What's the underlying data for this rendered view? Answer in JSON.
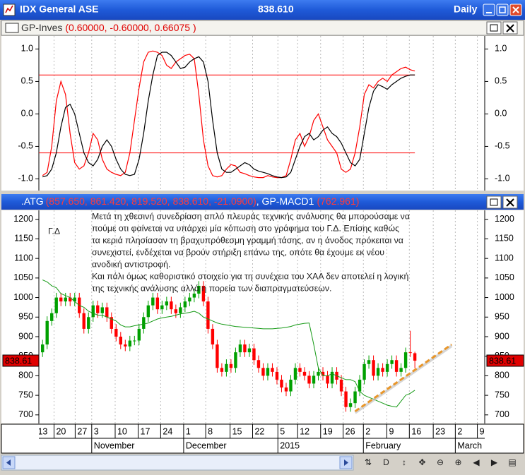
{
  "window": {
    "title": "IDX General ASE",
    "price": "838.610",
    "period": "Daily"
  },
  "chart_data": [
    {
      "type": "line",
      "name": "GP-Inves",
      "params": "(0.60000, -0.60000, 0.66075 )",
      "xlim": [
        -0.8,
        96.2
      ],
      "ylim": [
        -1.18,
        1.2
      ],
      "yticks": [
        {
          "value": 1,
          "label": "1.0"
        },
        0.5,
        {
          "value": 0,
          "label": "0.0"
        },
        -0.5,
        {
          "value": -1,
          "label": "-1.0"
        }
      ],
      "hlines": {
        "values": [
          0.6,
          -0.6
        ],
        "color": "#ff0000"
      },
      "series": [
        {
          "color": "#ff0000",
          "values": [
            -0.95,
            -0.9,
            -0.5,
            0.2,
            0.5,
            0.3,
            -0.3,
            -0.75,
            -0.85,
            -0.8,
            -0.6,
            -0.3,
            -0.4,
            -0.7,
            -0.85,
            -0.9,
            -0.93,
            -0.95,
            -0.9,
            -0.6,
            -0.1,
            0.4,
            0.8,
            0.95,
            0.97,
            0.95,
            0.9,
            0.75,
            0.7,
            0.8,
            0.85,
            0.9,
            0.92,
            0.85,
            0.3,
            -0.4,
            -0.8,
            -0.95,
            -0.97,
            -0.95,
            -0.85,
            -0.78,
            -0.8,
            -0.9,
            -0.92,
            -0.95,
            -0.97,
            -0.98,
            -0.98,
            -0.95,
            -0.97,
            -0.98,
            -0.98,
            -0.95,
            -0.7,
            -0.4,
            -0.3,
            -0.5,
            -0.35,
            -0.1,
            0.0,
            -0.2,
            -0.4,
            -0.5,
            -0.6,
            -0.85,
            -0.9,
            -0.85,
            -0.6,
            -0.2,
            0.3,
            0.45,
            0.4,
            0.5,
            0.55,
            0.5,
            0.6,
            0.65,
            0.7,
            0.72,
            0.68,
            0.66075
          ]
        },
        {
          "color": "#000000",
          "values": [
            -0.97,
            -0.95,
            -0.85,
            -0.6,
            -0.2,
            0.1,
            0.15,
            0.0,
            -0.3,
            -0.6,
            -0.75,
            -0.8,
            -0.7,
            -0.5,
            -0.4,
            -0.5,
            -0.7,
            -0.85,
            -0.93,
            -0.95,
            -0.93,
            -0.7,
            -0.3,
            0.2,
            0.6,
            0.9,
            0.95,
            0.95,
            0.9,
            0.8,
            0.7,
            0.72,
            0.8,
            0.85,
            0.88,
            0.8,
            0.5,
            -0.1,
            -0.6,
            -0.85,
            -0.9,
            -0.9,
            -0.85,
            -0.8,
            -0.75,
            -0.78,
            -0.85,
            -0.88,
            -0.9,
            -0.92,
            -0.95,
            -0.97,
            -0.98,
            -0.97,
            -0.9,
            -0.7,
            -0.5,
            -0.35,
            -0.3,
            -0.4,
            -0.35,
            -0.25,
            -0.2,
            -0.3,
            -0.35,
            -0.45,
            -0.6,
            -0.75,
            -0.8,
            -0.7,
            -0.3,
            0.1,
            0.35,
            0.45,
            0.42,
            0.38,
            0.45,
            0.5,
            0.55,
            0.58,
            0.6,
            0.6
          ]
        }
      ]
    },
    {
      "type": "candlestick",
      "name": ".ATG",
      "params": "(857.650, 861.420, 819.520, 838.610, -21.0900)",
      "indicator": ", GP-MACD1",
      "indicator_value": "(762.961)",
      "xlim": [
        -0.8,
        96.2
      ],
      "ylim": [
        678,
        1223
      ],
      "yticks": [
        700,
        750,
        800,
        850,
        900,
        950,
        1000,
        1050,
        1100,
        1150,
        1200
      ],
      "up_color": "#00a000",
      "down_color": "#ff0000",
      "open": [
        860,
        880,
        940,
        960,
        1000,
        990,
        1000,
        990,
        1000,
        960,
        920,
        950,
        980,
        960,
        975,
        950,
        920,
        900,
        880,
        875,
        890,
        890,
        920,
        950,
        980,
        1000,
        970,
        980,
        990,
        970,
        960,
        975,
        990,
        1000,
        1010,
        1030,
        990,
        920,
        880,
        820,
        810,
        830,
        820,
        860,
        880,
        860,
        870,
        840,
        820,
        800,
        820,
        810,
        790,
        770,
        760,
        790,
        820,
        810,
        800,
        780,
        800,
        810,
        800,
        780,
        810,
        790,
        760,
        720,
        730,
        760,
        790,
        830,
        840,
        800,
        820,
        810,
        830,
        840,
        810,
        820,
        860,
        857.65
      ],
      "high": [
        892,
        952,
        972,
        1012,
        1012,
        1012,
        1012,
        1012,
        1012,
        972,
        962,
        992,
        992,
        987,
        987,
        962,
        932,
        912,
        892,
        902,
        902,
        932,
        962,
        992,
        1012,
        1012,
        992,
        1002,
        1002,
        982,
        987,
        1002,
        1012,
        1022,
        1042,
        1042,
        1002,
        932,
        892,
        832,
        842,
        842,
        872,
        892,
        892,
        882,
        882,
        852,
        832,
        832,
        832,
        822,
        802,
        782,
        802,
        832,
        832,
        822,
        812,
        812,
        822,
        822,
        812,
        822,
        822,
        802,
        772,
        742,
        772,
        802,
        842,
        852,
        852,
        832,
        832,
        842,
        852,
        852,
        832,
        872,
        915,
        861.42
      ],
      "low": [
        848,
        868,
        928,
        948,
        978,
        978,
        978,
        978,
        948,
        908,
        908,
        938,
        948,
        948,
        938,
        908,
        888,
        868,
        863,
        863,
        878,
        878,
        908,
        938,
        968,
        958,
        958,
        968,
        958,
        948,
        948,
        963,
        978,
        988,
        998,
        978,
        908,
        868,
        808,
        798,
        798,
        808,
        808,
        848,
        848,
        848,
        828,
        808,
        788,
        788,
        798,
        778,
        758,
        748,
        748,
        778,
        798,
        788,
        768,
        768,
        788,
        788,
        768,
        768,
        778,
        748,
        708,
        708,
        718,
        748,
        778,
        818,
        788,
        788,
        798,
        798,
        818,
        798,
        798,
        808,
        848,
        819.52
      ],
      "close": [
        880,
        940,
        960,
        1000,
        990,
        1000,
        990,
        1000,
        960,
        920,
        950,
        980,
        960,
        975,
        950,
        920,
        900,
        880,
        875,
        890,
        890,
        920,
        950,
        980,
        1000,
        970,
        980,
        990,
        970,
        960,
        975,
        990,
        1000,
        1010,
        1030,
        990,
        920,
        880,
        820,
        810,
        830,
        820,
        860,
        880,
        860,
        870,
        840,
        820,
        800,
        820,
        810,
        790,
        770,
        760,
        790,
        820,
        810,
        800,
        780,
        800,
        810,
        800,
        780,
        810,
        790,
        760,
        720,
        730,
        760,
        790,
        830,
        840,
        800,
        820,
        810,
        830,
        840,
        810,
        820,
        860,
        859.7,
        838.61
      ],
      "series": [
        {
          "color": "#159a15",
          "values": [
            1045,
            1040,
            1030,
            1025,
            1010,
            1005,
            1000,
            990,
            980,
            975,
            965,
            960,
            955,
            955,
            950,
            945,
            940,
            930,
            925,
            925,
            928,
            930,
            932,
            935,
            940,
            945,
            948,
            950,
            952,
            955,
            958,
            960,
            962,
            965,
            960,
            950,
            945,
            940,
            935,
            932,
            930,
            928,
            926,
            925,
            924,
            923,
            922,
            921,
            920,
            920,
            920,
            921,
            922,
            924,
            926,
            930,
            932,
            934,
            935,
            880,
            820,
            800,
            800,
            805,
            800,
            795,
            790,
            790,
            785,
            760,
            750,
            745,
            740,
            735,
            730,
            725,
            722,
            720,
            735,
            750,
            755,
            762.961
          ]
        }
      ],
      "trendline": {
        "x": [
          68,
          89
        ],
        "values": [
          709,
          880
        ],
        "color": "#e8962a"
      },
      "last_label": "838.61",
      "annotation_title": "Γ.Δ",
      "annotation": [
        "Μετά τη χθεσινή συνεδρίαση απλό πλευράς τεχνικής ανάλυσης θα μπορούσαμε να",
        "πούμε οτι φαίνεται να υπάρχει μία κόπωση στο γράφημα του Γ.Δ. Επίσης  καθώς",
        "τα κεριά πλησίασαν τη βραχυπρόθεσμη γραμμή τάσης, αν η άνοδος πρόκειται να",
        "συνεχιστεί, ενδέχεται να βρούν στήριξη επάνω της, οπότε θα έχουμε εκ νέου",
        "ανοδική αντιστροφή.",
        "Και πάλι όμως καθοριστικό στοιχείο για τη συνέχεια του ΧΑΑ δεν αποτελεί  η λογική",
        "της τεχνικής ανάλυσης αλλά η πορεία των διαπραγματεύσεων."
      ]
    }
  ],
  "x_axis": {
    "xticks": [
      {
        "value": -1.5,
        "label": "13"
      },
      {
        "value": 2.5,
        "label": "20"
      },
      {
        "value": 7.1,
        "label": "27"
      },
      {
        "value": 10.7,
        "label": "3"
      },
      {
        "value": 15.8,
        "label": "10"
      },
      {
        "value": 20.8,
        "label": "17"
      },
      {
        "value": 25.7,
        "label": "24"
      },
      {
        "value": 30.7,
        "label": "1"
      },
      {
        "value": 35.5,
        "label": "8"
      },
      {
        "value": 40.8,
        "label": "15"
      },
      {
        "value": 45.7,
        "label": "22"
      },
      {
        "value": 51.2,
        "label": "5"
      },
      {
        "value": 55.5,
        "label": "12"
      },
      {
        "value": 60.5,
        "label": "19"
      },
      {
        "value": 65.4,
        "label": "26"
      },
      {
        "value": 69.8,
        "label": "2"
      },
      {
        "value": 74.9,
        "label": "9"
      },
      {
        "value": 79.8,
        "label": "16"
      },
      {
        "value": 85,
        "label": "23"
      },
      {
        "value": 89.8,
        "label": "2"
      },
      {
        "value": 94.6,
        "label": "9"
      }
    ],
    "months": [
      {
        "value": 10.7,
        "label": "November"
      },
      {
        "value": 30.7,
        "label": "December"
      },
      {
        "value": 51.2,
        "label": "2015"
      },
      {
        "value": 69.8,
        "label": "February"
      },
      {
        "value": 89.8,
        "label": "March"
      }
    ]
  },
  "toolbar": [
    "⇅",
    "D",
    "↕",
    "✥",
    "⊖",
    "⊕",
    "◀",
    "▶",
    "▤"
  ]
}
